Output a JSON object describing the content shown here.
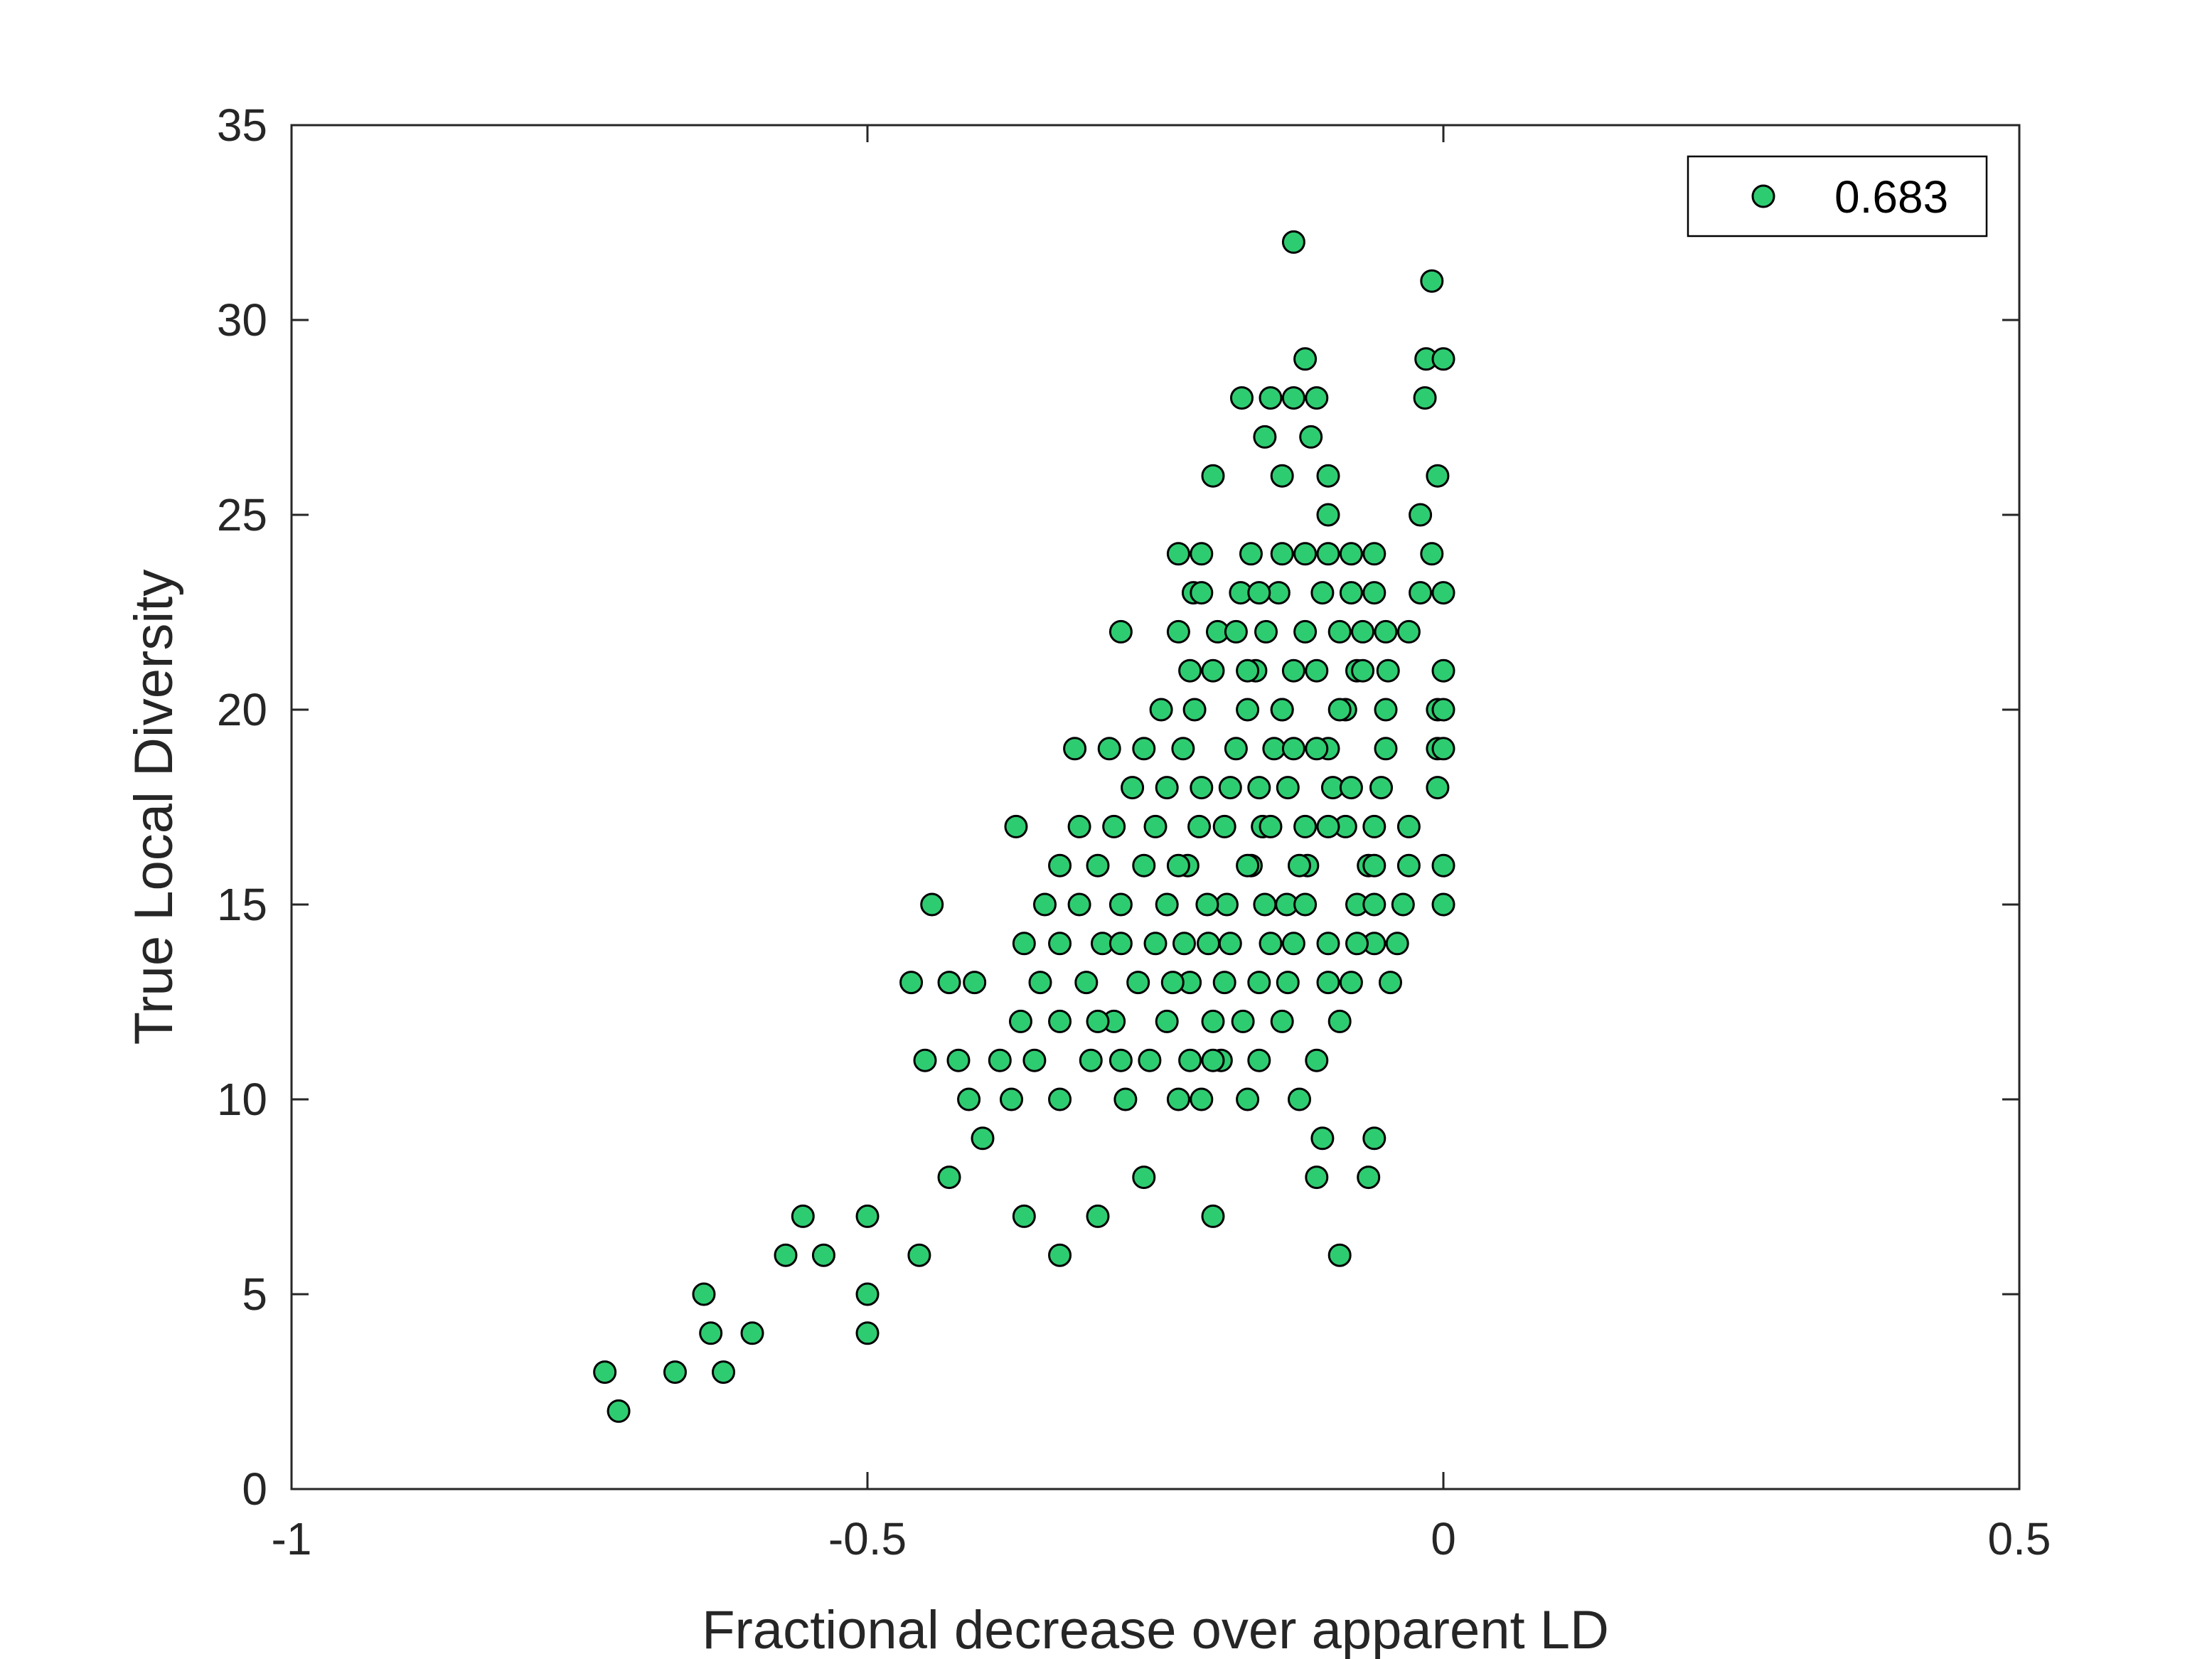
{
  "chart_data": {
    "type": "scatter",
    "title": "",
    "xlabel": "Fractional decrease over apparent LD",
    "ylabel": "True Local Diversity",
    "xlim": [
      -1,
      0.5
    ],
    "ylim": [
      0,
      35
    ],
    "xticks": [
      -1,
      -0.5,
      0,
      0.5
    ],
    "xtick_labels": [
      "-1",
      "-0.5",
      "0",
      "0.5"
    ],
    "yticks": [
      0,
      5,
      10,
      15,
      20,
      25,
      30,
      35
    ],
    "ytick_labels": [
      "0",
      "5",
      "10",
      "15",
      "20",
      "25",
      "30",
      "35"
    ],
    "grid": false,
    "legend": {
      "position": "top-right",
      "entries": [
        "0.683"
      ]
    },
    "marker_face_color": "#2ecc71",
    "marker_edge_color": "#000000",
    "series": [
      {
        "name": "0.683",
        "points": [
          [
            -0.728,
            3
          ],
          [
            -0.716,
            2
          ],
          [
            -0.667,
            3
          ],
          [
            -0.642,
            5
          ],
          [
            -0.636,
            4
          ],
          [
            -0.625,
            3
          ],
          [
            -0.6,
            4
          ],
          [
            -0.571,
            6
          ],
          [
            -0.556,
            7
          ],
          [
            -0.538,
            6
          ],
          [
            -0.5,
            7
          ],
          [
            -0.5,
            5
          ],
          [
            -0.5,
            4
          ],
          [
            -0.455,
            6
          ],
          [
            -0.462,
            13
          ],
          [
            -0.45,
            11
          ],
          [
            -0.444,
            15
          ],
          [
            -0.429,
            13
          ],
          [
            -0.421,
            11
          ],
          [
            -0.429,
            8
          ],
          [
            -0.412,
            10
          ],
          [
            -0.407,
            13
          ],
          [
            -0.4,
            9
          ],
          [
            -0.385,
            11
          ],
          [
            -0.375,
            10
          ],
          [
            -0.371,
            17
          ],
          [
            -0.367,
            12
          ],
          [
            -0.364,
            14
          ],
          [
            -0.364,
            7
          ],
          [
            -0.355,
            11
          ],
          [
            -0.35,
            13
          ],
          [
            -0.346,
            15
          ],
          [
            -0.333,
            16
          ],
          [
            -0.333,
            14
          ],
          [
            -0.333,
            12
          ],
          [
            -0.333,
            10
          ],
          [
            -0.333,
            6
          ],
          [
            -0.32,
            19
          ],
          [
            -0.316,
            17
          ],
          [
            -0.316,
            15
          ],
          [
            -0.31,
            13
          ],
          [
            -0.306,
            11
          ],
          [
            -0.3,
            16
          ],
          [
            -0.296,
            14
          ],
          [
            -0.3,
            7
          ],
          [
            -0.29,
            19
          ],
          [
            -0.286,
            17
          ],
          [
            -0.286,
            12
          ],
          [
            -0.28,
            22
          ],
          [
            -0.28,
            15
          ],
          [
            -0.276,
            10
          ],
          [
            -0.27,
            18
          ],
          [
            -0.265,
            13
          ],
          [
            -0.26,
            19
          ],
          [
            -0.26,
            16
          ],
          [
            -0.26,
            8
          ],
          [
            -0.255,
            11
          ],
          [
            -0.25,
            14
          ],
          [
            -0.25,
            17
          ],
          [
            -0.245,
            20
          ],
          [
            -0.24,
            18
          ],
          [
            -0.24,
            15
          ],
          [
            -0.24,
            12
          ],
          [
            -0.23,
            22
          ],
          [
            -0.226,
            19
          ],
          [
            -0.222,
            16
          ],
          [
            -0.22,
            13
          ],
          [
            -0.217,
            23
          ],
          [
            -0.216,
            20
          ],
          [
            -0.212,
            17
          ],
          [
            -0.21,
            10
          ],
          [
            -0.21,
            24
          ],
          [
            -0.204,
            14
          ],
          [
            -0.2,
            21
          ],
          [
            -0.2,
            7
          ],
          [
            -0.196,
            22
          ],
          [
            -0.193,
            11
          ],
          [
            -0.188,
            15
          ],
          [
            -0.185,
            18
          ],
          [
            -0.18,
            19
          ],
          [
            -0.176,
            23
          ],
          [
            -0.174,
            12
          ],
          [
            -0.17,
            20
          ],
          [
            -0.167,
            16
          ],
          [
            -0.167,
            24
          ],
          [
            -0.163,
            21
          ],
          [
            -0.16,
            13
          ],
          [
            -0.157,
            17
          ],
          [
            -0.154,
            22
          ],
          [
            -0.15,
            14
          ],
          [
            -0.147,
            19
          ],
          [
            -0.143,
            23
          ],
          [
            -0.14,
            26
          ],
          [
            -0.14,
            20
          ],
          [
            -0.136,
            15
          ],
          [
            -0.135,
            18
          ],
          [
            -0.13,
            28
          ],
          [
            -0.13,
            21
          ],
          [
            -0.125,
            10
          ],
          [
            -0.12,
            17
          ],
          [
            -0.12,
            22
          ],
          [
            -0.118,
            16
          ],
          [
            -0.115,
            27
          ],
          [
            -0.11,
            11
          ],
          [
            -0.11,
            28
          ],
          [
            -0.105,
            23
          ],
          [
            -0.1,
            14
          ],
          [
            -0.1,
            24
          ],
          [
            -0.1,
            19
          ],
          [
            -0.096,
            18
          ],
          [
            -0.09,
            12
          ],
          [
            -0.09,
            6
          ],
          [
            -0.085,
            17
          ],
          [
            -0.085,
            20
          ],
          [
            -0.13,
            32
          ],
          [
            -0.08,
            13
          ],
          [
            -0.075,
            15
          ],
          [
            -0.075,
            21
          ],
          [
            -0.12,
            29
          ],
          [
            -0.07,
            22
          ],
          [
            -0.065,
            16
          ],
          [
            -0.06,
            24
          ],
          [
            -0.06,
            14
          ],
          [
            -0.06,
            23
          ],
          [
            -0.06,
            9
          ],
          [
            -0.065,
            8
          ],
          [
            -0.1,
            25
          ],
          [
            -0.1,
            26
          ],
          [
            -0.054,
            18
          ],
          [
            -0.05,
            19
          ],
          [
            -0.05,
            20
          ],
          [
            -0.048,
            21
          ],
          [
            -0.046,
            13
          ],
          [
            -0.04,
            14
          ],
          [
            -0.035,
            15
          ],
          [
            -0.03,
            17
          ],
          [
            -0.03,
            16
          ],
          [
            -0.03,
            22
          ],
          [
            -0.02,
            23
          ],
          [
            -0.02,
            25
          ],
          [
            -0.016,
            28
          ],
          [
            -0.015,
            29
          ],
          [
            -0.01,
            24
          ],
          [
            -0.01,
            31
          ],
          [
            -0.005,
            26
          ],
          [
            -0.005,
            20
          ],
          [
            -0.005,
            18
          ],
          [
            -0.005,
            19
          ],
          [
            0,
            29
          ],
          [
            0,
            23
          ],
          [
            0,
            21
          ],
          [
            0,
            20
          ],
          [
            0,
            19
          ],
          [
            0,
            16
          ],
          [
            0,
            15
          ],
          [
            -0.175,
            28
          ],
          [
            -0.15,
            28
          ],
          [
            -0.155,
            27
          ],
          [
            -0.2,
            26
          ],
          [
            -0.23,
            24
          ],
          [
            -0.21,
            23
          ],
          [
            -0.18,
            22
          ],
          [
            -0.16,
            23
          ],
          [
            -0.14,
            24
          ],
          [
            -0.12,
            24
          ],
          [
            -0.08,
            24
          ],
          [
            -0.08,
            23
          ],
          [
            -0.09,
            22
          ],
          [
            -0.17,
            21
          ],
          [
            -0.22,
            21
          ],
          [
            -0.14,
            20
          ],
          [
            -0.11,
            21
          ],
          [
            -0.13,
            19
          ],
          [
            -0.09,
            20
          ],
          [
            -0.11,
            19
          ],
          [
            -0.07,
            21
          ],
          [
            -0.05,
            22
          ],
          [
            -0.16,
            18
          ],
          [
            -0.21,
            18
          ],
          [
            -0.08,
            18
          ],
          [
            -0.19,
            17
          ],
          [
            -0.15,
            17
          ],
          [
            -0.1,
            17
          ],
          [
            -0.06,
            17
          ],
          [
            -0.23,
            16
          ],
          [
            -0.17,
            16
          ],
          [
            -0.125,
            16
          ],
          [
            -0.06,
            16
          ],
          [
            -0.205,
            15
          ],
          [
            -0.155,
            15
          ],
          [
            -0.12,
            15
          ],
          [
            -0.06,
            15
          ],
          [
            -0.225,
            14
          ],
          [
            -0.185,
            14
          ],
          [
            -0.13,
            14
          ],
          [
            -0.075,
            14
          ],
          [
            -0.28,
            14
          ],
          [
            -0.235,
            13
          ],
          [
            -0.19,
            13
          ],
          [
            -0.135,
            13
          ],
          [
            -0.1,
            13
          ],
          [
            -0.3,
            12
          ],
          [
            -0.2,
            12
          ],
          [
            -0.14,
            12
          ],
          [
            -0.16,
            11
          ],
          [
            -0.22,
            11
          ],
          [
            -0.2,
            11
          ],
          [
            -0.28,
            11
          ],
          [
            -0.23,
            10
          ],
          [
            -0.17,
            10
          ],
          [
            -0.105,
            9
          ],
          [
            -0.11,
            8
          ]
        ]
      }
    ]
  }
}
